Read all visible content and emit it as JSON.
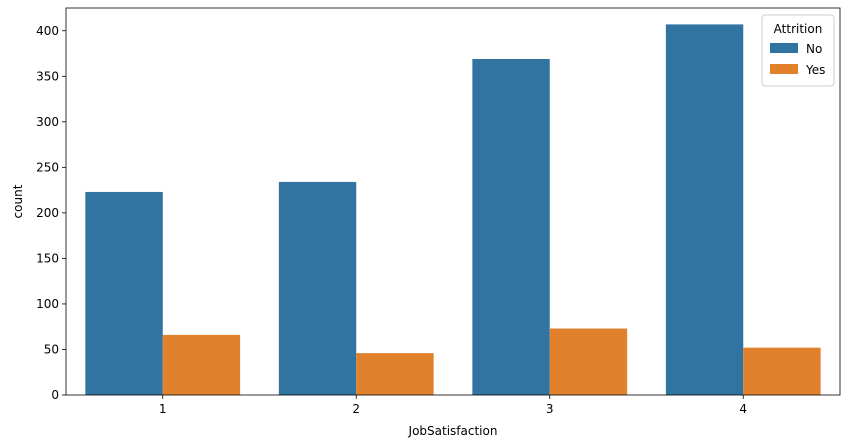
{
  "chart_data": {
    "type": "bar",
    "title": "",
    "xlabel": "JobSatisfaction",
    "ylabel": "count",
    "categories": [
      "1",
      "2",
      "3",
      "4"
    ],
    "series": [
      {
        "name": "No",
        "color": "#3274a1",
        "values": [
          223,
          234,
          369,
          407
        ]
      },
      {
        "name": "Yes",
        "color": "#e1812c",
        "values": [
          66,
          46,
          73,
          52
        ]
      }
    ],
    "ylim": [
      0,
      425
    ],
    "yticks": [
      0,
      50,
      100,
      150,
      200,
      250,
      300,
      350,
      400
    ],
    "grid": false,
    "legend": {
      "title": "Attrition",
      "placement": "top-right"
    }
  }
}
